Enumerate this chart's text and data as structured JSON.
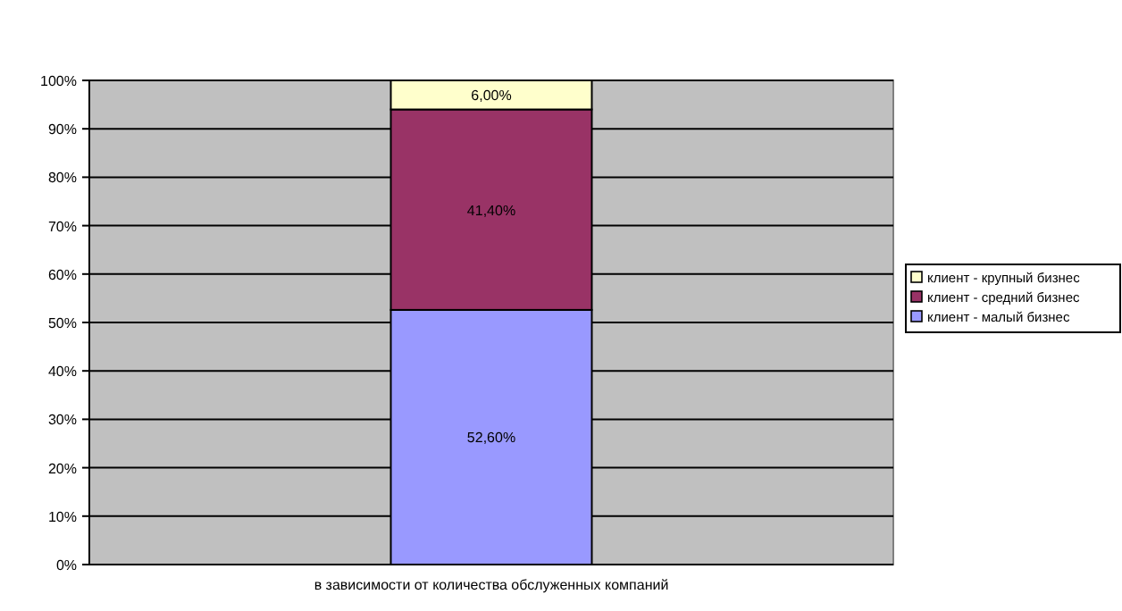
{
  "chart_data": {
    "type": "bar",
    "stacked": true,
    "categories": [
      "в зависимости от количества обслуженных компаний"
    ],
    "series": [
      {
        "name": "клиент - малый бизнес",
        "color": "#9999ff",
        "values": [
          52.6
        ],
        "value_labels": [
          "52,60%"
        ]
      },
      {
        "name": "клиент - средний бизнес",
        "color": "#993366",
        "values": [
          41.4
        ],
        "value_labels": [
          "41,40%"
        ]
      },
      {
        "name": "клиент - крупный бизнес",
        "color": "#ffffcc",
        "values": [
          6.0
        ],
        "value_labels": [
          "6,00%"
        ]
      }
    ],
    "ylim": [
      0,
      100
    ],
    "yticks": [
      {
        "value": 0,
        "label": "0%"
      },
      {
        "value": 10,
        "label": "10%"
      },
      {
        "value": 20,
        "label": "20%"
      },
      {
        "value": 30,
        "label": "30%"
      },
      {
        "value": 40,
        "label": "40%"
      },
      {
        "value": 50,
        "label": "50%"
      },
      {
        "value": 60,
        "label": "60%"
      },
      {
        "value": 70,
        "label": "70%"
      },
      {
        "value": 80,
        "label": "80%"
      },
      {
        "value": 90,
        "label": "90%"
      },
      {
        "value": 100,
        "label": "100%"
      }
    ],
    "grid": "y",
    "legend": "right"
  }
}
